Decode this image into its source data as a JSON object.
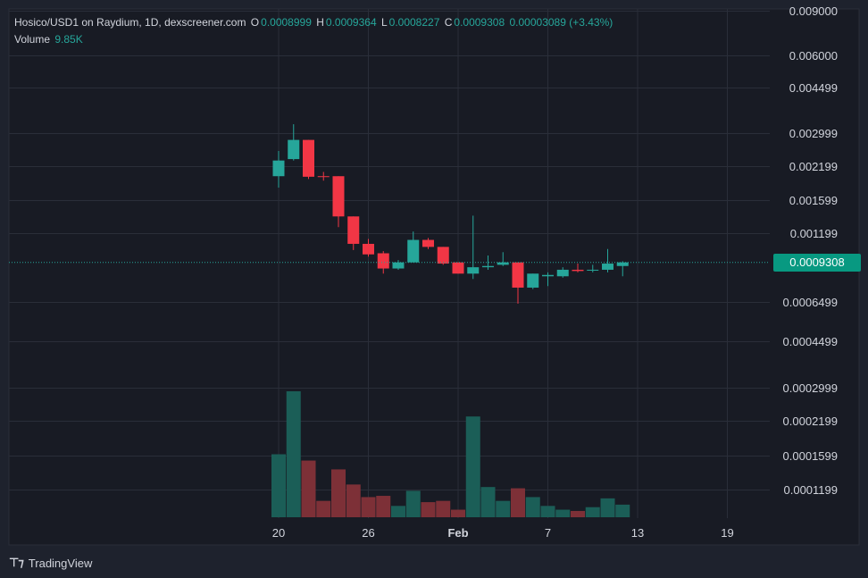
{
  "header": {
    "symbol": "Hosico/USD1 on Raydium, 1D, dexscreener.com",
    "o_label": "O",
    "o_value": "0.0008999",
    "h_label": "H",
    "h_value": "0.0009364",
    "l_label": "L",
    "l_value": "0.0008227",
    "c_label": "C",
    "c_value": "0.0009308",
    "change": "0.00003089 (+3.43%)",
    "volume_label": "Volume",
    "volume_value": "9.85K"
  },
  "current_price_tag": "0.0009308",
  "branding": {
    "name": "TradingView",
    "logo": "tradingview-logo-icon"
  },
  "colors": {
    "background": "#1e222d",
    "plot_background": "#181b24",
    "grid": "#2a2e39",
    "up": "#26a69a",
    "down": "#f23645",
    "volume_up": "#1b5e57",
    "volume_down": "#7d3037",
    "text": "#d1d4dc",
    "price_tag": "#089981"
  },
  "chart_data": {
    "type": "candlestick",
    "scale": "log",
    "price_axis_labels": [
      "0.009000",
      "0.006000",
      "0.004499",
      "0.002999",
      "0.002199",
      "0.001599",
      "0.001199",
      "0.0006499",
      "0.0004499",
      "0.0002999",
      "0.0002199",
      "0.0001599",
      "0.0001199"
    ],
    "x_ticks": [
      "20",
      "26",
      "Feb",
      "7",
      "13",
      "19"
    ],
    "x_tick_days": [
      0,
      6,
      12,
      18,
      24,
      30
    ],
    "candles": [
      {
        "day": 0,
        "o": 0.00203,
        "h": 0.00255,
        "l": 0.00183,
        "c": 0.00234
      },
      {
        "day": 1,
        "o": 0.00237,
        "h": 0.00325,
        "l": 0.00234,
        "c": 0.00282
      },
      {
        "day": 2,
        "o": 0.00282,
        "h": 0.00282,
        "l": 0.00198,
        "c": 0.00202
      },
      {
        "day": 3,
        "o": 0.00203,
        "h": 0.00211,
        "l": 0.00195,
        "c": 0.00202
      },
      {
        "day": 4,
        "o": 0.00203,
        "h": 0.00203,
        "l": 0.00128,
        "c": 0.00141
      },
      {
        "day": 5,
        "o": 0.00141,
        "h": 0.00141,
        "l": 0.00104,
        "c": 0.0011
      },
      {
        "day": 6,
        "o": 0.0011,
        "h": 0.00115,
        "l": 0.00098,
        "c": 0.001
      },
      {
        "day": 7,
        "o": 0.00101,
        "h": 0.00103,
        "l": 0.00084,
        "c": 0.00088
      },
      {
        "day": 8,
        "o": 0.00088,
        "h": 0.00095,
        "l": 0.00087,
        "c": 0.00093
      },
      {
        "day": 9,
        "o": 0.00093,
        "h": 0.00123,
        "l": 0.00093,
        "c": 0.00114
      },
      {
        "day": 10,
        "o": 0.00114,
        "h": 0.00116,
        "l": 0.00105,
        "c": 0.00107
      },
      {
        "day": 11,
        "o": 0.00107,
        "h": 0.00107,
        "l": 0.00091,
        "c": 0.00092
      },
      {
        "day": 12,
        "o": 0.00093,
        "h": 0.00093,
        "l": 0.00084,
        "c": 0.00084
      },
      {
        "day": 13,
        "o": 0.00084,
        "h": 0.00142,
        "l": 0.0008,
        "c": 0.00089
      },
      {
        "day": 14,
        "o": 0.00089,
        "h": 0.00099,
        "l": 0.00087,
        "c": 0.0009
      },
      {
        "day": 15,
        "o": 0.00091,
        "h": 0.00102,
        "l": 0.0009,
        "c": 0.00093
      },
      {
        "day": 16,
        "o": 0.00093,
        "h": 0.00093,
        "l": 0.00064,
        "c": 0.00074
      },
      {
        "day": 17,
        "o": 0.00074,
        "h": 0.00084,
        "l": 0.00073,
        "c": 0.00084
      },
      {
        "day": 18,
        "o": 0.00082,
        "h": 0.00085,
        "l": 0.00075,
        "c": 0.00083
      },
      {
        "day": 19,
        "o": 0.00082,
        "h": 0.00089,
        "l": 0.00081,
        "c": 0.00087
      },
      {
        "day": 20,
        "o": 0.00087,
        "h": 0.00092,
        "l": 0.00085,
        "c": 0.00086
      },
      {
        "day": 21,
        "o": 0.00087,
        "h": 0.00091,
        "l": 0.00085,
        "c": 0.00087
      },
      {
        "day": 22,
        "o": 0.00087,
        "h": 0.00105,
        "l": 0.00085,
        "c": 0.00092
      },
      {
        "day": 23,
        "o": 0.0009,
        "h": 0.00094,
        "l": 0.00082,
        "c": 0.00093
      }
    ],
    "volume_relative": [
      0.5,
      1.0,
      0.45,
      0.13,
      0.38,
      0.26,
      0.16,
      0.17,
      0.09,
      0.21,
      0.12,
      0.13,
      0.06,
      0.8,
      0.24,
      0.13,
      0.23,
      0.16,
      0.09,
      0.06,
      0.05,
      0.08,
      0.15,
      0.1
    ]
  }
}
